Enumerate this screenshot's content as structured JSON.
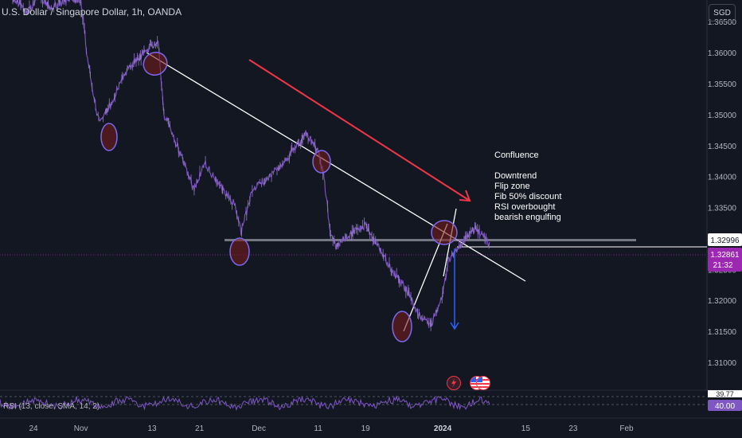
{
  "header": {
    "title": "U.S. Dollar / Singapore Dollar, 1h, OANDA",
    "currency": "SGD"
  },
  "annotation": {
    "heading": "Confluence",
    "items": [
      "Downtrend",
      "Flip zone",
      "Fib 50% discount",
      "RSI overbought",
      "bearish engulfing"
    ]
  },
  "rsi": {
    "label": "RSI (13, close, SMA, 14, 2)",
    "value": "40.00",
    "top_value": "39.77"
  },
  "price_badges": {
    "level": "1.32996",
    "last": "1.32861",
    "countdown": "21:32"
  },
  "chart_data": {
    "type": "line",
    "title": "U.S. Dollar / Singapore Dollar, 1h, OANDA",
    "y_ticks": [
      1.365,
      1.36,
      1.355,
      1.35,
      1.345,
      1.34,
      1.335,
      1.33,
      1.325,
      1.32,
      1.315,
      1.31
    ],
    "y_tick_labels": [
      "1.36500",
      "1.36000",
      "1.35500",
      "1.35000",
      "1.34500",
      "1.34000",
      "1.33500",
      "1.33000",
      "1.32500",
      "1.32000",
      "1.31500",
      "1.31000"
    ],
    "ylim": [
      1.3055,
      1.3685
    ],
    "x_tick_labels": [
      "24",
      "Nov",
      "13",
      "21",
      "Dec",
      "11",
      "19",
      "2024",
      "15",
      "23",
      "Feb"
    ],
    "x_tick_dates": [
      "2023-10-24",
      "2023-11-01",
      "2023-11-13",
      "2023-11-21",
      "2023-12-01",
      "2023-12-11",
      "2023-12-19",
      "2024-01-01",
      "2024-01-15",
      "2024-01-23",
      "2024-02-01"
    ],
    "series": [
      {
        "values": [
          [
            "2023-10-20",
            1.3695
          ],
          [
            "2023-10-23",
            1.3665
          ],
          [
            "2023-10-25",
            1.3692
          ],
          [
            "2023-10-27",
            1.3672
          ],
          [
            "2023-10-30",
            1.3688
          ],
          [
            "2023-11-01",
            1.3685
          ],
          [
            "2023-11-02",
            1.36
          ],
          [
            "2023-11-03",
            1.354
          ],
          [
            "2023-11-04",
            1.349
          ],
          [
            "2023-11-06",
            1.3515
          ],
          [
            "2023-11-08",
            1.356
          ],
          [
            "2023-11-10",
            1.3585
          ],
          [
            "2023-11-13",
            1.3612
          ],
          [
            "2023-11-14",
            1.362
          ],
          [
            "2023-11-15",
            1.35
          ],
          [
            "2023-11-16",
            1.348
          ],
          [
            "2023-11-18",
            1.343
          ],
          [
            "2023-11-20",
            1.338
          ],
          [
            "2023-11-22",
            1.342
          ],
          [
            "2023-11-24",
            1.339
          ],
          [
            "2023-11-27",
            1.3355
          ],
          [
            "2023-11-28",
            1.331
          ],
          [
            "2023-11-30",
            1.338
          ],
          [
            "2023-12-02",
            1.3395
          ],
          [
            "2023-12-05",
            1.342
          ],
          [
            "2023-12-07",
            1.3445
          ],
          [
            "2023-12-09",
            1.347
          ],
          [
            "2023-12-11",
            1.344
          ],
          [
            "2023-12-12",
            1.34
          ],
          [
            "2023-12-13",
            1.331
          ],
          [
            "2023-12-14",
            1.3285
          ],
          [
            "2023-12-16",
            1.3305
          ],
          [
            "2023-12-19",
            1.332
          ],
          [
            "2023-12-21",
            1.329
          ],
          [
            "2023-12-23",
            1.3255
          ],
          [
            "2023-12-26",
            1.3215
          ],
          [
            "2023-12-28",
            1.3175
          ],
          [
            "2023-12-30",
            1.316
          ],
          [
            "2024-01-01",
            1.321
          ],
          [
            "2024-01-02",
            1.3265
          ],
          [
            "2024-01-04",
            1.329
          ],
          [
            "2024-01-06",
            1.3315
          ],
          [
            "2024-01-08",
            1.3306
          ],
          [
            "2024-01-09",
            1.3288
          ]
        ]
      }
    ],
    "horizontal_levels": [
      1.32996,
      1.32861
    ],
    "last_price": 1.32861,
    "rsi_levels": [
      39.77,
      40.0
    ],
    "grid": false
  }
}
